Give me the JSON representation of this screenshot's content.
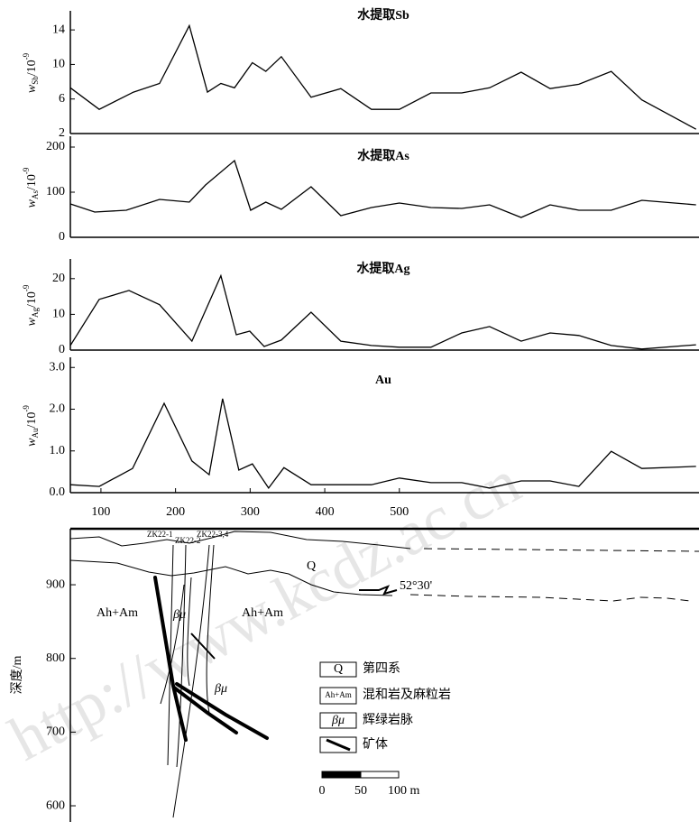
{
  "watermark": "http://www.kcdz.ac.cn",
  "chart_data": [
    {
      "type": "line",
      "title": "水提取Sb",
      "ylabel": {
        "symbol": "w",
        "sub": "Sb",
        "unit": "/10",
        "sup": "-9"
      },
      "x": [
        59,
        97.7,
        143.6,
        178.6,
        218.5,
        242.7,
        260.8,
        279,
        303,
        321,
        341.8,
        381.7,
        421.5,
        462.6,
        500,
        542.3,
        583.5,
        620.9,
        663.2,
        702,
        740.6,
        784,
        825,
        897.6
      ],
      "values": [
        7.3,
        4.8,
        6.8,
        7.8,
        14.5,
        6.8,
        7.8,
        7.3,
        10.2,
        9.2,
        10.9,
        6.2,
        7.2,
        4.8,
        4.8,
        6.7,
        6.7,
        7.3,
        9.1,
        7.2,
        7.7,
        9.2,
        5.9,
        2.5
      ],
      "color": "#000000",
      "xlim": [
        59,
        898
      ],
      "ylim": [
        2,
        16
      ],
      "yticks": [
        2,
        6,
        10,
        14
      ]
    },
    {
      "type": "line",
      "title": "水提取As",
      "ylabel": {
        "symbol": "w",
        "sub": "As",
        "unit": "/10",
        "sup": "-9"
      },
      "x": [
        59,
        91.6,
        133.9,
        178.6,
        218.5,
        240.2,
        279,
        300.7,
        321,
        341.8,
        381.7,
        421.5,
        462.6,
        500,
        542.3,
        583.5,
        620.9,
        663.2,
        702,
        740.6,
        784,
        825,
        897.6
      ],
      "values": [
        74,
        56,
        60,
        84,
        78,
        116,
        170,
        60,
        78,
        62,
        112,
        48,
        66,
        76,
        66,
        64,
        72,
        44,
        72,
        60,
        60,
        82,
        72
      ],
      "color": "#000000",
      "xlim": [
        59,
        898
      ],
      "ylim": [
        0,
        220
      ],
      "yticks": [
        0,
        100,
        200
      ]
    },
    {
      "type": "line",
      "title": "水提取Ag",
      "ylabel": {
        "symbol": "w",
        "sub": "Ag",
        "unit": "/10",
        "sup": "-9"
      },
      "x": [
        59,
        97.7,
        137.6,
        178.6,
        222,
        260.8,
        281.4,
        299.5,
        318.8,
        341.8,
        381.7,
        421.5,
        462.6,
        500,
        542.3,
        583.5,
        620.9,
        663.2,
        702,
        740.6,
        784,
        825,
        897.6
      ],
      "values": [
        1.3,
        14.2,
        16.7,
        12.7,
        2.5,
        20.8,
        4.3,
        5.3,
        1.0,
        2.8,
        10.6,
        2.5,
        1.3,
        0.8,
        0.8,
        4.8,
        6.6,
        2.5,
        4.8,
        4.1,
        1.3,
        0.3,
        1.5
      ],
      "color": "#000000",
      "xlim": [
        59,
        898
      ],
      "ylim": [
        0,
        25
      ],
      "yticks": [
        0,
        10,
        20
      ]
    },
    {
      "type": "line",
      "title": "Au",
      "ylabel": {
        "symbol": "w",
        "sub": "Au",
        "unit": "/10",
        "sup": "-9"
      },
      "x": [
        59,
        97.7,
        142.4,
        184.7,
        222,
        245,
        263.1,
        284.8,
        303,
        324.7,
        345.3,
        381.7,
        421.5,
        462.6,
        500,
        542.3,
        583.5,
        620.9,
        663.2,
        702,
        740.6,
        784,
        825,
        897.6
      ],
      "values": [
        0.19,
        0.15,
        0.58,
        2.14,
        0.76,
        0.43,
        2.25,
        0.54,
        0.69,
        0.11,
        0.6,
        0.19,
        0.19,
        0.19,
        0.35,
        0.24,
        0.24,
        0.11,
        0.28,
        0.28,
        0.15,
        0.99,
        0.58,
        0.63
      ],
      "color": "#000000",
      "xlim": [
        59,
        898
      ],
      "ylim": [
        0,
        3.2
      ],
      "yticks": [
        {
          "value": 0,
          "label": "0.0"
        },
        {
          "value": 1,
          "label": "1.0"
        },
        {
          "value": 2,
          "label": "2.0"
        },
        {
          "value": 3,
          "label": "3.0"
        }
      ],
      "xticks": [
        100,
        200,
        300,
        400,
        500
      ]
    }
  ],
  "section": {
    "ylabel": "深度/m",
    "ylim": [
      578,
      976
    ],
    "yticks": [
      900,
      800,
      700,
      600
    ],
    "labels": {
      "q": "Q",
      "ah_am_left": "Ah+Am",
      "ah_am_right": "Ah+Am",
      "beta_mu_1": "βμ",
      "beta_mu_2": "βμ",
      "dip": "52°30'"
    },
    "drills": [
      "ZK22-1",
      "ZK22-2",
      "ZK22-3,4"
    ],
    "legend": [
      {
        "symbol": "Q",
        "label": "第四系"
      },
      {
        "symbol": "Ah+Am",
        "label": "混和岩及麻粒岩"
      },
      {
        "symbol": "βμ",
        "label": "辉绿岩脉"
      },
      {
        "label": "矿体"
      }
    ],
    "scale": [
      "0",
      "50",
      "100 m"
    ]
  }
}
